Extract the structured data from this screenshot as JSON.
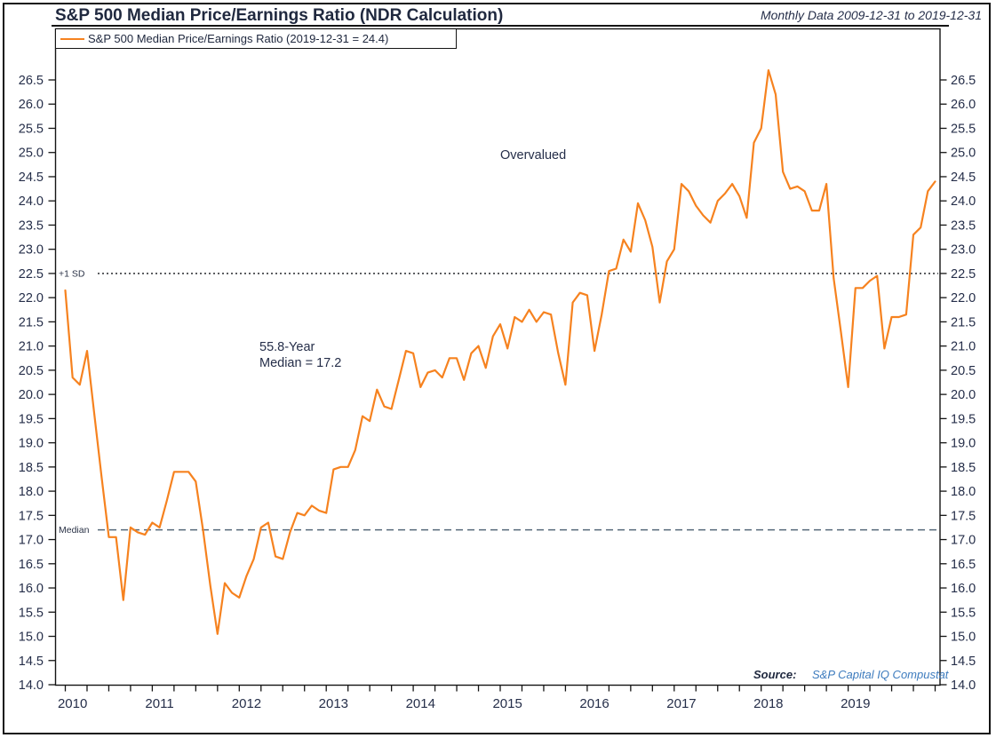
{
  "header": {
    "title": "S&P 500 Median Price/Earnings Ratio (NDR Calculation)",
    "subtitle": "Monthly Data 2009-12-31 to 2019-12-31"
  },
  "legend": {
    "label": "S&P 500 Median Price/Earnings Ratio (2019-12-31 = 24.4)"
  },
  "annotations": {
    "overvalued": "Overvalued",
    "median_note_line1": "55.8-Year",
    "median_note_line2": "Median = 17.2",
    "plus1sd_label": "+1 SD",
    "median_label": "Median"
  },
  "source": {
    "label": "Source:",
    "name": "S&P Capital IQ Compustat"
  },
  "colors": {
    "series_orange": "#F6821F",
    "text_navy": "#252e49",
    "source_blue": "#3E7CBE",
    "median_dash": "#56687A",
    "plus1sd_dot": "#15171C",
    "frame_black": "#141414"
  },
  "chart_data": {
    "type": "line",
    "title": "S&P 500 Median Price/Earnings Ratio (NDR Calculation)",
    "frequency": "monthly",
    "x_start": "2009-12-31",
    "x_end": "2019-12-31",
    "x_tick_years": [
      "2010",
      "2011",
      "2012",
      "2013",
      "2014",
      "2015",
      "2016",
      "2017",
      "2018",
      "2019"
    ],
    "ylim": [
      14.0,
      26.5
    ],
    "y_tick_step": 0.5,
    "grid": "off",
    "legend_position": "top-left",
    "reference_lines": [
      {
        "id": "plus1sd",
        "label": "+1 SD",
        "value": 22.5,
        "style": "dotted",
        "color": "#15171C"
      },
      {
        "id": "medianline",
        "label": "Median",
        "value": 17.2,
        "style": "dashed",
        "color": "#56687A"
      }
    ],
    "series": [
      {
        "name": "S&P 500 Median Price/Earnings Ratio",
        "color": "#F6821F",
        "last_point": {
          "date": "2019-12-31",
          "value": 24.4
        },
        "values_by_year": {
          "2009": [
            22.15
          ],
          "2010": [
            20.35,
            20.2,
            20.9,
            19.6,
            18.3,
            17.05,
            17.05,
            15.75,
            17.25,
            17.15,
            17.1,
            17.35
          ],
          "2011": [
            17.25,
            17.8,
            18.4,
            18.4,
            18.4,
            18.2,
            17.2,
            16.05,
            15.05,
            16.1,
            15.9,
            15.8
          ],
          "2012": [
            16.25,
            16.6,
            17.25,
            17.35,
            16.65,
            16.6,
            17.15,
            17.55,
            17.5,
            17.7,
            17.6,
            17.55
          ],
          "2013": [
            18.45,
            18.5,
            18.5,
            18.85,
            19.55,
            19.45,
            20.1,
            19.75,
            19.7,
            20.3,
            20.9,
            20.85
          ],
          "2014": [
            20.15,
            20.45,
            20.5,
            20.35,
            20.75,
            20.75,
            20.3,
            20.85,
            21.0,
            20.55,
            21.2,
            21.45
          ],
          "2015": [
            20.95,
            21.6,
            21.5,
            21.75,
            21.5,
            21.7,
            21.65,
            20.85,
            20.2,
            21.9,
            22.1,
            22.05
          ],
          "2016": [
            20.9,
            21.65,
            22.55,
            22.6,
            23.2,
            22.95,
            23.95,
            23.6,
            23.05,
            21.9,
            22.75,
            23.0
          ],
          "2017": [
            24.35,
            24.2,
            23.9,
            23.7,
            23.55,
            24.0,
            24.15,
            24.35,
            24.1,
            23.65,
            25.2,
            25.5
          ],
          "2018": [
            26.7,
            26.2,
            24.6,
            24.25,
            24.3,
            24.2,
            23.8,
            23.8,
            24.35,
            22.4,
            21.3,
            20.15
          ],
          "2019": [
            22.2,
            22.2,
            22.35,
            22.45,
            20.95,
            21.6,
            21.6,
            21.65,
            23.3,
            23.45,
            24.2,
            24.4
          ]
        }
      }
    ]
  }
}
